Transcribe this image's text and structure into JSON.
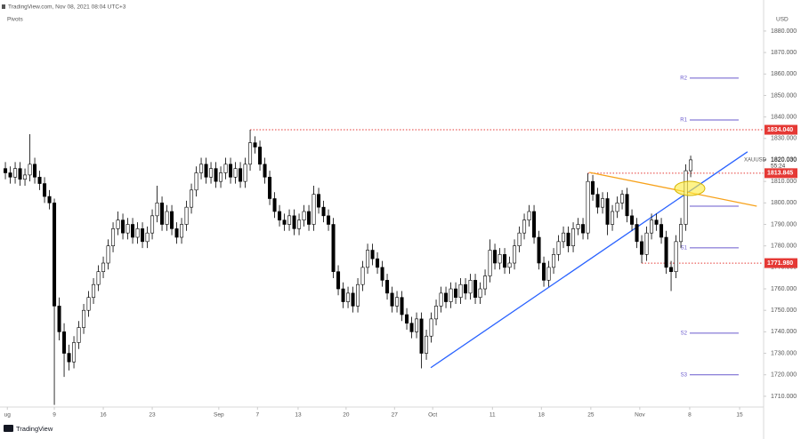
{
  "chart_data": {
    "type": "candlestick",
    "header": "TradingView.com, Nov 08, 2021 08:04 UTC+3",
    "indicator": "Pivots",
    "currency": "USD",
    "symbol": "XAUUSD",
    "footer": "TradingView",
    "up_color": "#ffffff",
    "down_color": "#000000",
    "outline_color": "#000000",
    "xlim": [
      -1.1,
      154.9
    ],
    "ylim": [
      1705,
      1887
    ],
    "xticks": [
      {
        "value": 0.4,
        "label": "ug"
      },
      {
        "value": 10,
        "label": "9"
      },
      {
        "value": 20,
        "label": "16"
      },
      {
        "value": 30,
        "label": "23"
      },
      {
        "value": 43.6,
        "label": "Sep"
      },
      {
        "value": 51.5,
        "label": "7"
      },
      {
        "value": 59.8,
        "label": "13"
      },
      {
        "value": 69.6,
        "label": "20"
      },
      {
        "value": 79.5,
        "label": "27"
      },
      {
        "value": 87.3,
        "label": "Oct"
      },
      {
        "value": 99.5,
        "label": "11"
      },
      {
        "value": 109.5,
        "label": "18"
      },
      {
        "value": 119.6,
        "label": "25"
      },
      {
        "value": 129.6,
        "label": "Nov"
      },
      {
        "value": 139.8,
        "label": "8"
      },
      {
        "value": 150,
        "label": "15"
      }
    ],
    "yticks": [
      {
        "value": 1710,
        "label": "1710.000"
      },
      {
        "value": 1720,
        "label": "1720.000"
      },
      {
        "value": 1730,
        "label": "1730.000"
      },
      {
        "value": 1740,
        "label": "1740.000"
      },
      {
        "value": 1750,
        "label": "1750.000"
      },
      {
        "value": 1760,
        "label": "1760.000"
      },
      {
        "value": 1770,
        "label": "1770.000"
      },
      {
        "value": 1780,
        "label": "1780.000"
      },
      {
        "value": 1790,
        "label": "1790.000"
      },
      {
        "value": 1800,
        "label": "1800.000"
      },
      {
        "value": 1810,
        "label": "1810.000"
      },
      {
        "value": 1820,
        "label": "1820.000"
      },
      {
        "value": 1830,
        "label": "1830.000"
      },
      {
        "value": 1840,
        "label": "1840.000"
      },
      {
        "value": 1850,
        "label": "1850.000"
      },
      {
        "value": 1860,
        "label": "1860.000"
      },
      {
        "value": 1870,
        "label": "1870.000"
      },
      {
        "value": 1880,
        "label": "1880.000"
      }
    ],
    "grid": false,
    "open": [
      1816,
      1814,
      1812,
      1816,
      1811,
      1813,
      1818,
      1812,
      1809,
      1803,
      1800,
      1752,
      1740,
      1730,
      1726,
      1735,
      1742,
      1750,
      1756,
      1762,
      1768,
      1772,
      1780,
      1788,
      1792,
      1786,
      1790,
      1784,
      1788,
      1782,
      1786,
      1794,
      1800,
      1790,
      1796,
      1788,
      1784,
      1790,
      1798,
      1806,
      1814,
      1818,
      1812,
      1816,
      1810,
      1814,
      1818,
      1812,
      1816,
      1810,
      1818,
      1828,
      1826,
      1818,
      1812,
      1802,
      1796,
      1792,
      1790,
      1794,
      1788,
      1792,
      1796,
      1790,
      1804,
      1798,
      1794,
      1790,
      1768,
      1760,
      1754,
      1758,
      1752,
      1762,
      1770,
      1778,
      1774,
      1770,
      1764,
      1758,
      1752,
      1756,
      1748,
      1744,
      1740,
      1746,
      1730,
      1738,
      1746,
      1752,
      1758,
      1754,
      1760,
      1756,
      1762,
      1758,
      1764,
      1756,
      1760,
      1766,
      1778,
      1772,
      1776,
      1770,
      1772,
      1780,
      1786,
      1792,
      1796,
      1784,
      1772,
      1764,
      1770,
      1776,
      1782,
      1786,
      1780,
      1788,
      1790,
      1786,
      1810,
      1804,
      1798,
      1802,
      1790,
      1796,
      1800,
      1804,
      1794,
      1790,
      1782,
      1776,
      1786,
      1792,
      1790,
      1784,
      1770,
      1768,
      1782,
      1790,
      1815
    ],
    "high": [
      1819,
      1817,
      1819,
      1819,
      1816,
      1832,
      1821,
      1815,
      1812,
      1806,
      1802,
      1756,
      1744,
      1734,
      1738,
      1745,
      1753,
      1759,
      1765,
      1771,
      1775,
      1783,
      1791,
      1796,
      1795,
      1793,
      1793,
      1791,
      1791,
      1789,
      1797,
      1808,
      1803,
      1799,
      1799,
      1791,
      1793,
      1801,
      1809,
      1817,
      1821,
      1821,
      1819,
      1819,
      1817,
      1821,
      1821,
      1819,
      1819,
      1821,
      1834.04,
      1831,
      1829,
      1821,
      1815,
      1805,
      1799,
      1795,
      1797,
      1797,
      1795,
      1799,
      1799,
      1808,
      1807,
      1801,
      1797,
      1793,
      1771,
      1763,
      1761,
      1761,
      1765,
      1773,
      1781,
      1781,
      1777,
      1773,
      1767,
      1761,
      1759,
      1759,
      1751,
      1747,
      1749,
      1749,
      1741,
      1749,
      1755,
      1761,
      1761,
      1763,
      1763,
      1765,
      1765,
      1767,
      1767,
      1763,
      1769,
      1783,
      1781,
      1779,
      1779,
      1775,
      1783,
      1789,
      1795,
      1799,
      1799,
      1787,
      1775,
      1773,
      1779,
      1785,
      1789,
      1789,
      1791,
      1793,
      1793,
      1813.845,
      1813,
      1807,
      1805,
      1805,
      1799,
      1803,
      1806,
      1807,
      1797,
      1793,
      1785,
      1789,
      1795,
      1795,
      1793,
      1787,
      1773,
      1785,
      1793,
      1818,
      1822
    ],
    "low": [
      1811,
      1809,
      1809,
      1808,
      1808,
      1810,
      1809,
      1806,
      1800,
      1797,
      1706,
      1736,
      1719,
      1722,
      1723,
      1732,
      1739,
      1747,
      1753,
      1759,
      1765,
      1769,
      1777,
      1785,
      1783,
      1783,
      1781,
      1781,
      1779,
      1779,
      1783,
      1791,
      1787,
      1787,
      1785,
      1781,
      1781,
      1787,
      1795,
      1803,
      1811,
      1809,
      1809,
      1807,
      1807,
      1811,
      1809,
      1809,
      1807,
      1807,
      1815,
      1823,
      1815,
      1809,
      1799,
      1793,
      1789,
      1787,
      1787,
      1785,
      1785,
      1789,
      1787,
      1787,
      1795,
      1791,
      1787,
      1765,
      1757,
      1751,
      1751,
      1749,
      1749,
      1759,
      1767,
      1771,
      1767,
      1761,
      1755,
      1749,
      1749,
      1745,
      1741,
      1737,
      1737,
      1723,
      1727,
      1735,
      1743,
      1749,
      1751,
      1751,
      1753,
      1753,
      1755,
      1755,
      1753,
      1753,
      1757,
      1763,
      1769,
      1769,
      1767,
      1767,
      1769,
      1777,
      1783,
      1789,
      1781,
      1769,
      1761,
      1761,
      1767,
      1773,
      1779,
      1777,
      1777,
      1785,
      1783,
      1783,
      1801,
      1795,
      1795,
      1785,
      1787,
      1793,
      1797,
      1791,
      1787,
      1779,
      1771.98,
      1773,
      1783,
      1787,
      1781,
      1767,
      1759,
      1765,
      1779,
      1787,
      1812
    ],
    "close": [
      1814,
      1812,
      1816,
      1811,
      1813,
      1818,
      1812,
      1809,
      1803,
      1800,
      1752,
      1740,
      1730,
      1726,
      1735,
      1742,
      1750,
      1756,
      1762,
      1768,
      1772,
      1780,
      1788,
      1792,
      1786,
      1790,
      1784,
      1788,
      1782,
      1786,
      1794,
      1800,
      1790,
      1796,
      1788,
      1784,
      1790,
      1798,
      1806,
      1814,
      1818,
      1812,
      1816,
      1810,
      1814,
      1818,
      1812,
      1816,
      1810,
      1818,
      1828,
      1826,
      1818,
      1812,
      1802,
      1796,
      1792,
      1790,
      1794,
      1788,
      1792,
      1796,
      1790,
      1804,
      1798,
      1794,
      1790,
      1768,
      1760,
      1754,
      1758,
      1752,
      1762,
      1770,
      1778,
      1774,
      1770,
      1764,
      1758,
      1752,
      1756,
      1748,
      1744,
      1740,
      1746,
      1730,
      1738,
      1746,
      1752,
      1758,
      1754,
      1760,
      1756,
      1762,
      1758,
      1764,
      1756,
      1760,
      1766,
      1778,
      1772,
      1776,
      1770,
      1772,
      1780,
      1786,
      1792,
      1796,
      1784,
      1772,
      1764,
      1770,
      1776,
      1782,
      1786,
      1780,
      1788,
      1790,
      1786,
      1810,
      1804,
      1798,
      1802,
      1790,
      1796,
      1800,
      1804,
      1794,
      1790,
      1782,
      1776,
      1786,
      1792,
      1790,
      1784,
      1770,
      1768,
      1782,
      1790,
      1815,
      1820.03
    ],
    "levels": [
      {
        "value": 1834.04,
        "label": "1834.040",
        "start": 50,
        "color": "#e53935"
      },
      {
        "value": 1813.845,
        "label": "1813.845",
        "start": 119,
        "color": "#e53935"
      },
      {
        "value": 1771.98,
        "label": "1771.980",
        "start": 130,
        "color": "#e53935"
      }
    ],
    "last_price": {
      "value": 1820.03,
      "label": "1820.030",
      "countdown": "55:24"
    },
    "pivots": {
      "color": "#6a5acd",
      "x": [
        139.8,
        149.8
      ],
      "levels": [
        {
          "label": "R2",
          "value": 1858.1
        },
        {
          "label": "R1",
          "value": 1838.6
        },
        {
          "value": 1798.5
        },
        {
          "label": "S1",
          "value": 1779.1
        },
        {
          "label": "S2",
          "value": 1739.4
        },
        {
          "label": "S3",
          "value": 1720.0
        }
      ]
    },
    "trendlines": [
      {
        "color": "#2962ff",
        "x": [
          86.9,
          151.6
        ],
        "y": [
          1723.3,
          1823.8
        ]
      },
      {
        "color": "#f7a21b",
        "x": [
          119.3,
          153.5
        ],
        "y": [
          1814.2,
          1798.5
        ]
      }
    ]
  }
}
